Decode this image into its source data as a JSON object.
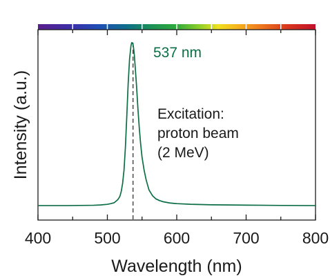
{
  "chart_data": {
    "type": "line",
    "title": "",
    "xlabel": "Wavelength (nm)",
    "ylabel": "Intensity (a.u.)",
    "xlim": [
      400,
      800
    ],
    "ylim": [
      0,
      1.07
    ],
    "xticks": [
      400,
      500,
      600,
      700,
      800
    ],
    "xtick_labels": [
      "400",
      "500",
      "600",
      "700",
      "800"
    ],
    "minor_xticks": [
      450,
      550,
      650,
      750
    ],
    "yticks_shown": false,
    "grid": false,
    "line_color": "#0b6e45",
    "peak": {
      "wavelength": 537,
      "label": "537 nm",
      "marker": "dashed-vertical-line"
    },
    "annotation": [
      "Excitation:",
      "proton beam",
      "(2 MeV)"
    ],
    "spectrum_bar": {
      "range": [
        400,
        800
      ],
      "separators": [
        450,
        500,
        550,
        600,
        650,
        700,
        750
      ]
    },
    "series": [
      {
        "x": [
          400,
          420,
          440,
          460,
          480,
          490,
          500,
          505,
          510,
          515,
          518,
          520,
          522,
          524,
          526,
          528,
          530,
          532,
          534,
          535,
          536,
          537,
          538,
          539,
          540,
          542,
          544,
          546,
          548,
          550,
          553,
          556,
          560,
          565,
          570,
          575,
          580,
          590,
          600,
          620,
          650,
          700,
          750,
          800
        ],
        "y": [
          0.004,
          0.004,
          0.004,
          0.005,
          0.006,
          0.008,
          0.012,
          0.016,
          0.022,
          0.04,
          0.06,
          0.09,
          0.14,
          0.22,
          0.36,
          0.55,
          0.75,
          0.9,
          0.98,
          1.0,
          1.0,
          0.99,
          0.96,
          0.92,
          0.86,
          0.74,
          0.6,
          0.48,
          0.38,
          0.3,
          0.22,
          0.16,
          0.1,
          0.065,
          0.045,
          0.035,
          0.028,
          0.02,
          0.016,
          0.012,
          0.009,
          0.007,
          0.005,
          0.004
        ]
      }
    ]
  }
}
